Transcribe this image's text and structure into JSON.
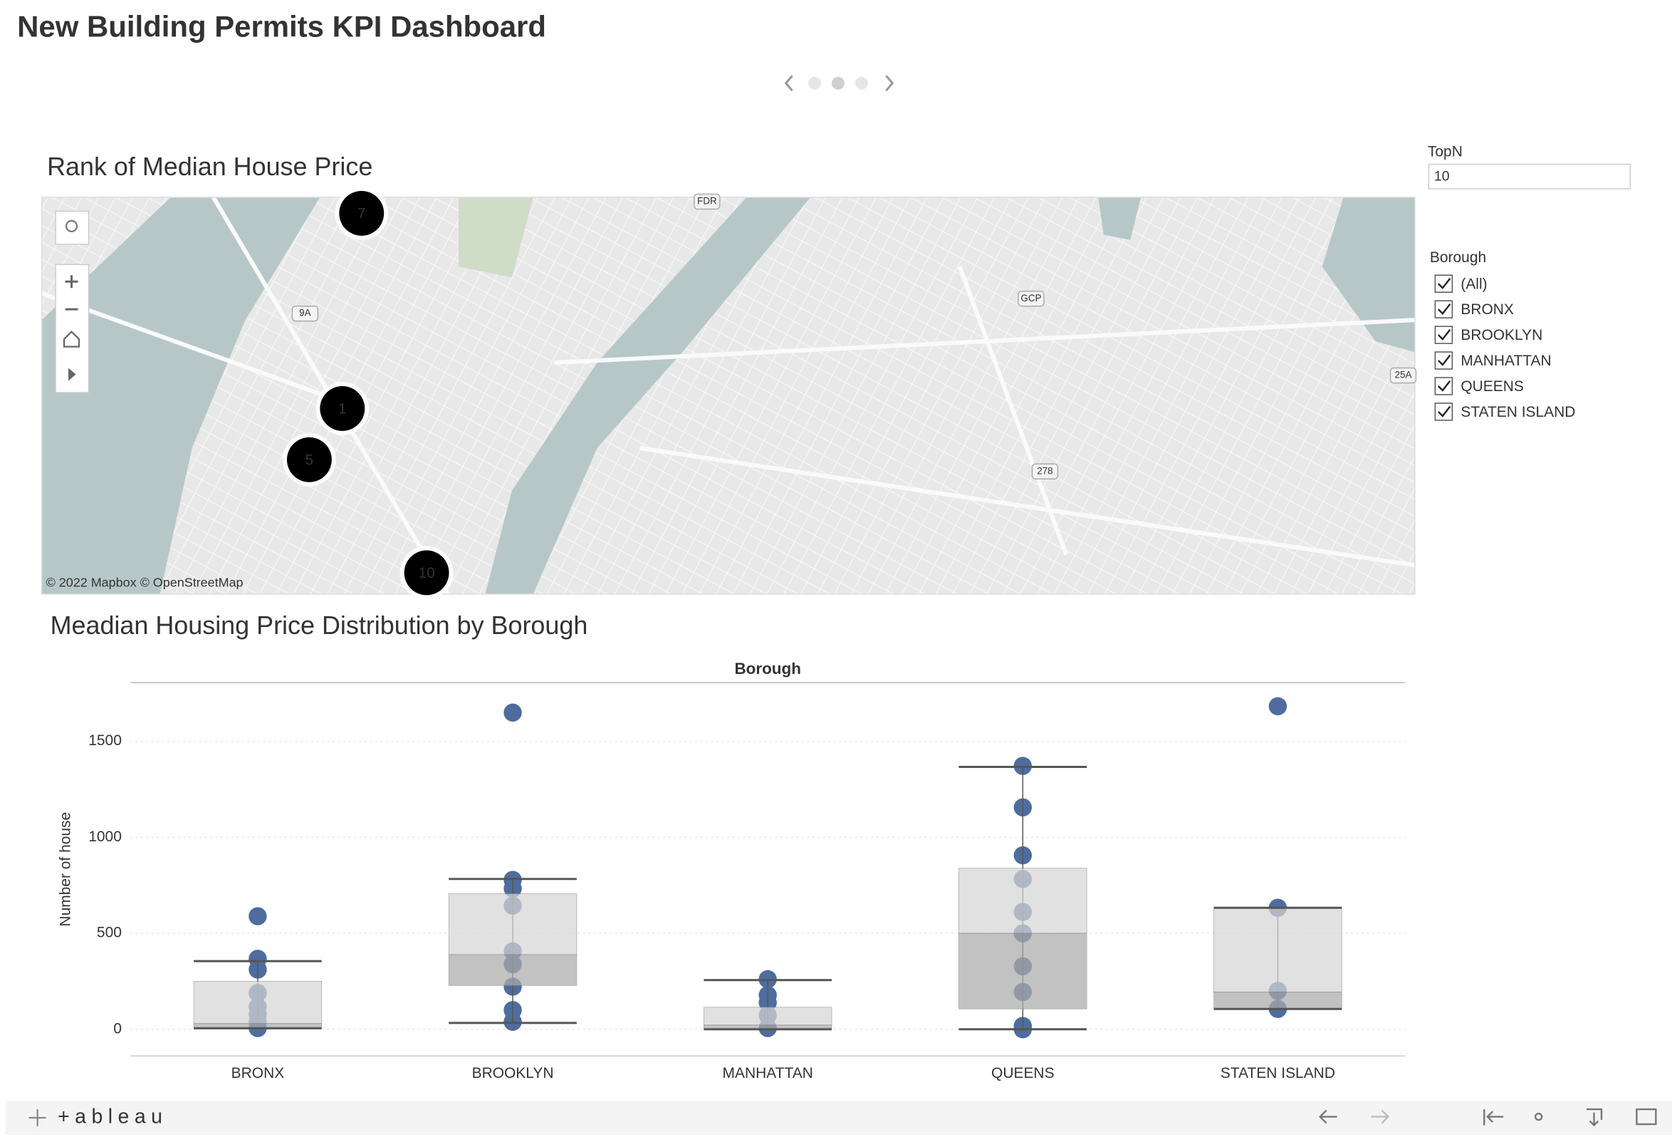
{
  "header": {
    "title": "New Building Permits KPI Dashboard"
  },
  "map": {
    "title": "Rank of Median House Price",
    "markers": [
      "7",
      "1",
      "5",
      "10"
    ],
    "road_labels": [
      "FDR",
      "9A",
      "GCP",
      "25A",
      "278"
    ],
    "attribution": "© 2022 Mapbox © OpenStreetMap"
  },
  "filters": {
    "topn": {
      "label": "TopN",
      "value": "10"
    },
    "borough": {
      "label": "Borough",
      "options": [
        "(All)",
        "BRONX",
        "BROOKLYN",
        "MANHATTAN",
        "QUEENS",
        "STATEN ISLAND"
      ]
    }
  },
  "chart_data": {
    "type": "box",
    "title": "Meadian Housing Price Distribution by Borough",
    "x_label": "Borough",
    "y_label": "Number of house",
    "categories": [
      "BRONX",
      "BROOKLYN",
      "MANHATTAN",
      "QUEENS",
      "STATEN ISLAND"
    ],
    "points": [
      [
        589,
        367,
        311,
        189,
        117,
        78,
        39,
        6
      ],
      [
        1650,
        778,
        733,
        644,
        406,
        339,
        222,
        100,
        39
      ],
      [
        261,
        178,
        139,
        72,
        6
      ],
      [
        1372,
        1156,
        906,
        783,
        611,
        500,
        328,
        194,
        17,
        0
      ],
      [
        1683,
        633,
        200,
        106
      ]
    ],
    "boxes": [
      {
        "low": 5,
        "q1": 10,
        "median": 30,
        "q3": 250,
        "high": 355
      },
      {
        "low": 33,
        "q1": 228,
        "median": 389,
        "q3": 706,
        "high": 783
      },
      {
        "low": 0,
        "q1": 3,
        "median": 22,
        "q3": 115,
        "high": 256
      },
      {
        "low": 0,
        "q1": 106,
        "median": 500,
        "q3": 839,
        "high": 1367
      },
      {
        "low": 106,
        "q1": 106,
        "median": 194,
        "q3": 633,
        "high": 633
      }
    ],
    "ylim": [
      -139,
      1806
    ],
    "yticks": [
      0,
      500,
      1000,
      1500
    ],
    "grid": true,
    "point_color": "#4e6d9e",
    "box_upper_color": "#d6d6d6",
    "box_lower_color": "#ababab"
  },
  "footer": {
    "logo": "+ableau"
  }
}
